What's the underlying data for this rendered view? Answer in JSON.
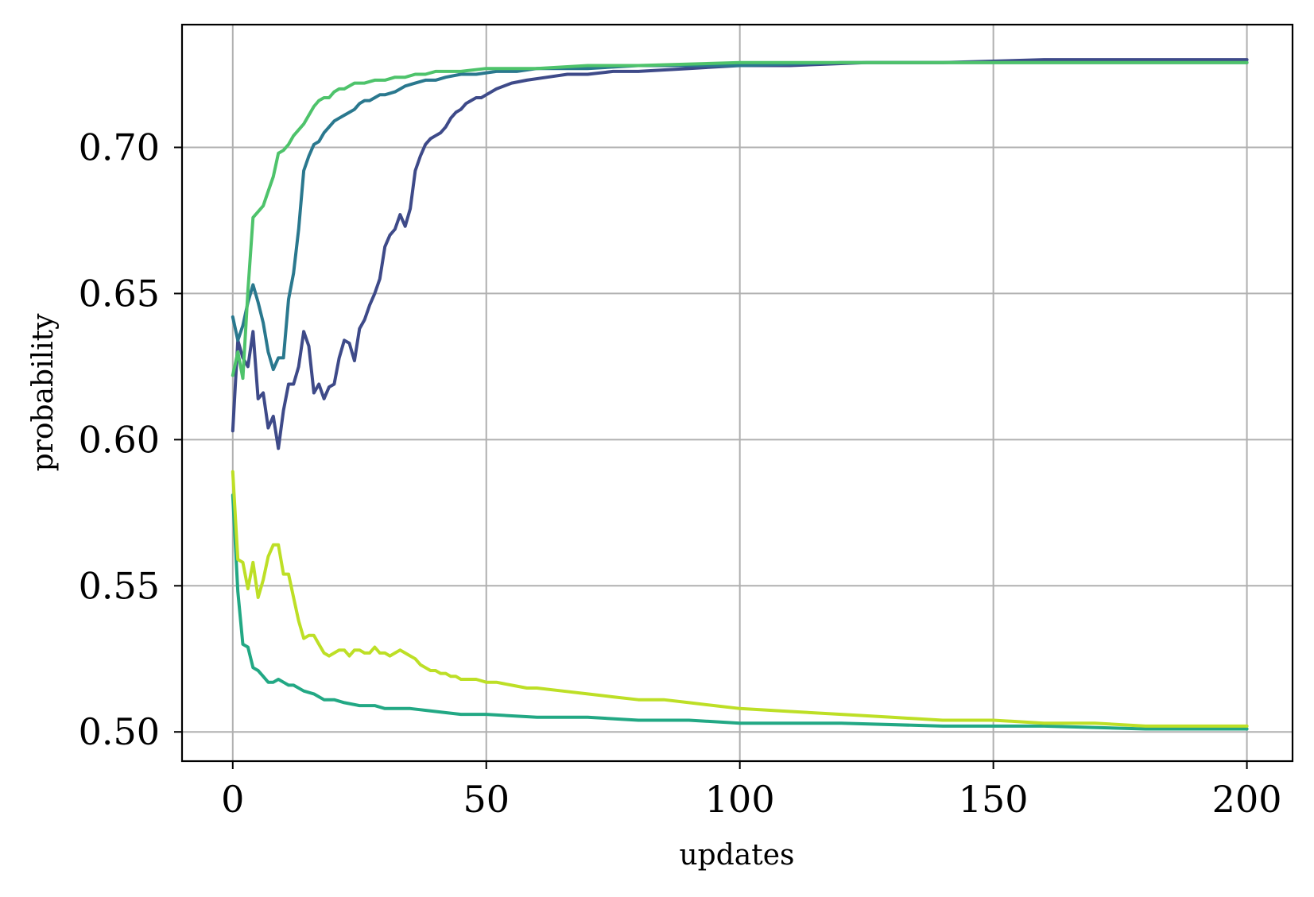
{
  "chart_data": {
    "type": "line",
    "xlabel": "updates",
    "ylabel": "probability",
    "xlim": [
      -10,
      209
    ],
    "ylim": [
      0.49,
      0.742
    ],
    "xticks": [
      0,
      50,
      100,
      150,
      200
    ],
    "yticks": [
      0.5,
      0.55,
      0.6,
      0.65,
      0.7
    ],
    "xtick_labels": [
      "0",
      "50",
      "100",
      "150",
      "200"
    ],
    "ytick_labels": [
      "0.50",
      "0.55",
      "0.60",
      "0.65",
      "0.70"
    ],
    "grid": true,
    "legend": "none",
    "series": [
      {
        "color": "#3e4a89",
        "points": [
          [
            0,
            0.603
          ],
          [
            1,
            0.634
          ],
          [
            2,
            0.628
          ],
          [
            3,
            0.625
          ],
          [
            4,
            0.637
          ],
          [
            5,
            0.614
          ],
          [
            6,
            0.616
          ],
          [
            7,
            0.604
          ],
          [
            8,
            0.608
          ],
          [
            9,
            0.597
          ],
          [
            10,
            0.61
          ],
          [
            11,
            0.619
          ],
          [
            12,
            0.619
          ],
          [
            13,
            0.625
          ],
          [
            14,
            0.637
          ],
          [
            15,
            0.632
          ],
          [
            16,
            0.616
          ],
          [
            17,
            0.619
          ],
          [
            18,
            0.614
          ],
          [
            19,
            0.618
          ],
          [
            20,
            0.619
          ],
          [
            21,
            0.628
          ],
          [
            22,
            0.634
          ],
          [
            23,
            0.633
          ],
          [
            24,
            0.627
          ],
          [
            25,
            0.638
          ],
          [
            26,
            0.641
          ],
          [
            27,
            0.646
          ],
          [
            28,
            0.65
          ],
          [
            29,
            0.655
          ],
          [
            30,
            0.666
          ],
          [
            31,
            0.67
          ],
          [
            32,
            0.672
          ],
          [
            33,
            0.677
          ],
          [
            34,
            0.673
          ],
          [
            35,
            0.679
          ],
          [
            36,
            0.692
          ],
          [
            37,
            0.697
          ],
          [
            38,
            0.701
          ],
          [
            39,
            0.703
          ],
          [
            40,
            0.704
          ],
          [
            41,
            0.705
          ],
          [
            42,
            0.707
          ],
          [
            43,
            0.71
          ],
          [
            44,
            0.712
          ],
          [
            45,
            0.713
          ],
          [
            46,
            0.715
          ],
          [
            47,
            0.716
          ],
          [
            48,
            0.717
          ],
          [
            49,
            0.717
          ],
          [
            50,
            0.718
          ],
          [
            52,
            0.72
          ],
          [
            55,
            0.722
          ],
          [
            58,
            0.723
          ],
          [
            62,
            0.724
          ],
          [
            66,
            0.725
          ],
          [
            70,
            0.725
          ],
          [
            75,
            0.726
          ],
          [
            80,
            0.726
          ],
          [
            90,
            0.727
          ],
          [
            100,
            0.728
          ],
          [
            110,
            0.728
          ],
          [
            125,
            0.729
          ],
          [
            140,
            0.729
          ],
          [
            160,
            0.73
          ],
          [
            180,
            0.73
          ],
          [
            200,
            0.73
          ]
        ]
      },
      {
        "color": "#2a788e",
        "points": [
          [
            0,
            0.642
          ],
          [
            1,
            0.634
          ],
          [
            2,
            0.639
          ],
          [
            3,
            0.647
          ],
          [
            4,
            0.653
          ],
          [
            5,
            0.647
          ],
          [
            6,
            0.64
          ],
          [
            7,
            0.63
          ],
          [
            8,
            0.624
          ],
          [
            9,
            0.628
          ],
          [
            10,
            0.628
          ],
          [
            11,
            0.648
          ],
          [
            12,
            0.657
          ],
          [
            13,
            0.672
          ],
          [
            14,
            0.692
          ],
          [
            15,
            0.697
          ],
          [
            16,
            0.701
          ],
          [
            17,
            0.702
          ],
          [
            18,
            0.705
          ],
          [
            19,
            0.707
          ],
          [
            20,
            0.709
          ],
          [
            21,
            0.71
          ],
          [
            22,
            0.711
          ],
          [
            23,
            0.712
          ],
          [
            24,
            0.713
          ],
          [
            25,
            0.715
          ],
          [
            26,
            0.716
          ],
          [
            27,
            0.716
          ],
          [
            28,
            0.717
          ],
          [
            29,
            0.718
          ],
          [
            30,
            0.718
          ],
          [
            32,
            0.719
          ],
          [
            34,
            0.721
          ],
          [
            36,
            0.722
          ],
          [
            38,
            0.723
          ],
          [
            40,
            0.723
          ],
          [
            42,
            0.724
          ],
          [
            45,
            0.725
          ],
          [
            48,
            0.725
          ],
          [
            52,
            0.726
          ],
          [
            56,
            0.726
          ],
          [
            60,
            0.727
          ],
          [
            70,
            0.727
          ],
          [
            80,
            0.728
          ],
          [
            100,
            0.728
          ],
          [
            120,
            0.729
          ],
          [
            150,
            0.729
          ],
          [
            200,
            0.729
          ]
        ]
      },
      {
        "color": "#22a884",
        "points": [
          [
            0,
            0.581
          ],
          [
            1,
            0.548
          ],
          [
            2,
            0.53
          ],
          [
            3,
            0.529
          ],
          [
            4,
            0.522
          ],
          [
            5,
            0.521
          ],
          [
            6,
            0.519
          ],
          [
            7,
            0.517
          ],
          [
            8,
            0.517
          ],
          [
            9,
            0.518
          ],
          [
            10,
            0.517
          ],
          [
            11,
            0.516
          ],
          [
            12,
            0.516
          ],
          [
            14,
            0.514
          ],
          [
            16,
            0.513
          ],
          [
            18,
            0.511
          ],
          [
            20,
            0.511
          ],
          [
            22,
            0.51
          ],
          [
            25,
            0.509
          ],
          [
            28,
            0.509
          ],
          [
            30,
            0.508
          ],
          [
            35,
            0.508
          ],
          [
            40,
            0.507
          ],
          [
            45,
            0.506
          ],
          [
            50,
            0.506
          ],
          [
            60,
            0.505
          ],
          [
            70,
            0.505
          ],
          [
            80,
            0.504
          ],
          [
            90,
            0.504
          ],
          [
            100,
            0.503
          ],
          [
            120,
            0.503
          ],
          [
            140,
            0.502
          ],
          [
            160,
            0.502
          ],
          [
            180,
            0.501
          ],
          [
            200,
            0.501
          ]
        ]
      },
      {
        "color": "#4ec36b",
        "points": [
          [
            0,
            0.622
          ],
          [
            1,
            0.63
          ],
          [
            2,
            0.621
          ],
          [
            3,
            0.651
          ],
          [
            4,
            0.676
          ],
          [
            5,
            0.678
          ],
          [
            6,
            0.68
          ],
          [
            7,
            0.685
          ],
          [
            8,
            0.69
          ],
          [
            9,
            0.698
          ],
          [
            10,
            0.699
          ],
          [
            11,
            0.701
          ],
          [
            12,
            0.704
          ],
          [
            13,
            0.706
          ],
          [
            14,
            0.708
          ],
          [
            15,
            0.711
          ],
          [
            16,
            0.714
          ],
          [
            17,
            0.716
          ],
          [
            18,
            0.717
          ],
          [
            19,
            0.717
          ],
          [
            20,
            0.719
          ],
          [
            21,
            0.72
          ],
          [
            22,
            0.72
          ],
          [
            23,
            0.721
          ],
          [
            24,
            0.722
          ],
          [
            25,
            0.722
          ],
          [
            26,
            0.722
          ],
          [
            28,
            0.723
          ],
          [
            30,
            0.723
          ],
          [
            32,
            0.724
          ],
          [
            34,
            0.724
          ],
          [
            36,
            0.725
          ],
          [
            38,
            0.725
          ],
          [
            40,
            0.726
          ],
          [
            45,
            0.726
          ],
          [
            50,
            0.727
          ],
          [
            55,
            0.727
          ],
          [
            60,
            0.727
          ],
          [
            70,
            0.728
          ],
          [
            80,
            0.728
          ],
          [
            100,
            0.729
          ],
          [
            120,
            0.729
          ],
          [
            140,
            0.729
          ],
          [
            160,
            0.729
          ],
          [
            180,
            0.729
          ],
          [
            200,
            0.729
          ]
        ]
      },
      {
        "color": "#bddf26",
        "points": [
          [
            0,
            0.589
          ],
          [
            1,
            0.559
          ],
          [
            2,
            0.558
          ],
          [
            3,
            0.549
          ],
          [
            4,
            0.558
          ],
          [
            5,
            0.546
          ],
          [
            6,
            0.552
          ],
          [
            7,
            0.56
          ],
          [
            8,
            0.564
          ],
          [
            9,
            0.564
          ],
          [
            10,
            0.554
          ],
          [
            11,
            0.554
          ],
          [
            12,
            0.546
          ],
          [
            13,
            0.538
          ],
          [
            14,
            0.532
          ],
          [
            15,
            0.533
          ],
          [
            16,
            0.533
          ],
          [
            17,
            0.53
          ],
          [
            18,
            0.527
          ],
          [
            19,
            0.526
          ],
          [
            20,
            0.527
          ],
          [
            21,
            0.528
          ],
          [
            22,
            0.528
          ],
          [
            23,
            0.526
          ],
          [
            24,
            0.528
          ],
          [
            25,
            0.528
          ],
          [
            26,
            0.527
          ],
          [
            27,
            0.527
          ],
          [
            28,
            0.529
          ],
          [
            29,
            0.527
          ],
          [
            30,
            0.527
          ],
          [
            31,
            0.526
          ],
          [
            32,
            0.527
          ],
          [
            33,
            0.528
          ],
          [
            34,
            0.527
          ],
          [
            35,
            0.526
          ],
          [
            36,
            0.525
          ],
          [
            37,
            0.523
          ],
          [
            38,
            0.522
          ],
          [
            39,
            0.521
          ],
          [
            40,
            0.521
          ],
          [
            41,
            0.52
          ],
          [
            42,
            0.52
          ],
          [
            43,
            0.519
          ],
          [
            44,
            0.519
          ],
          [
            45,
            0.518
          ],
          [
            46,
            0.518
          ],
          [
            47,
            0.518
          ],
          [
            48,
            0.518
          ],
          [
            50,
            0.517
          ],
          [
            52,
            0.517
          ],
          [
            55,
            0.516
          ],
          [
            58,
            0.515
          ],
          [
            60,
            0.515
          ],
          [
            65,
            0.514
          ],
          [
            70,
            0.513
          ],
          [
            75,
            0.512
          ],
          [
            80,
            0.511
          ],
          [
            85,
            0.511
          ],
          [
            90,
            0.51
          ],
          [
            95,
            0.509
          ],
          [
            100,
            0.508
          ],
          [
            110,
            0.507
          ],
          [
            120,
            0.506
          ],
          [
            130,
            0.505
          ],
          [
            140,
            0.504
          ],
          [
            150,
            0.504
          ],
          [
            160,
            0.503
          ],
          [
            170,
            0.503
          ],
          [
            180,
            0.502
          ],
          [
            190,
            0.502
          ],
          [
            200,
            0.502
          ]
        ]
      }
    ]
  }
}
